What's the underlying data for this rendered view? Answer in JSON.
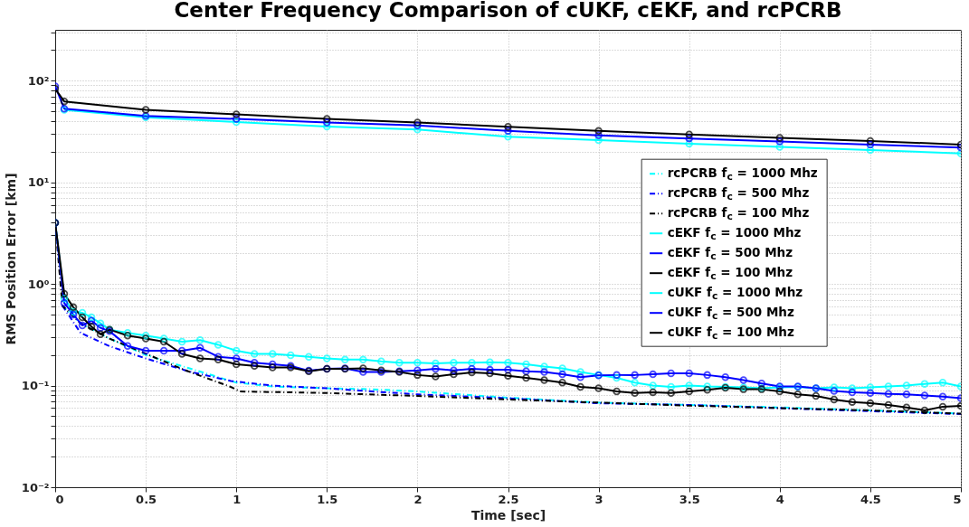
{
  "chart_data": {
    "type": "line",
    "title": "Center Frequency Comparison of cUKF, cEKF, and rcPCRB",
    "xlabel": "Time [sec]",
    "ylabel": "RMS Position Error [km]",
    "log": "y",
    "grid": true,
    "legend": "right",
    "xlim": [
      0,
      5
    ],
    "xticks": [
      0,
      0.5,
      1,
      1.5,
      2,
      2.5,
      3,
      3.5,
      4,
      4.5,
      5
    ],
    "ylim": [
      0.01,
      316
    ],
    "yticks": [
      {
        "value": 0.01,
        "label": "10⁻²"
      },
      {
        "value": 0.02,
        "label": null
      },
      {
        "value": 0.03,
        "label": null
      },
      {
        "value": 0.04,
        "label": null
      },
      {
        "value": 0.05,
        "label": null
      },
      {
        "value": 0.06,
        "label": null
      },
      {
        "value": 0.07,
        "label": null
      },
      {
        "value": 0.08,
        "label": null
      },
      {
        "value": 0.09,
        "label": null
      },
      {
        "value": 0.1,
        "label": "10⁻¹"
      },
      {
        "value": 0.2,
        "label": null
      },
      {
        "value": 0.3,
        "label": null
      },
      {
        "value": 0.4,
        "label": null
      },
      {
        "value": 0.5,
        "label": null
      },
      {
        "value": 0.6,
        "label": null
      },
      {
        "value": 0.7,
        "label": null
      },
      {
        "value": 0.8,
        "label": null
      },
      {
        "value": 0.9,
        "label": null
      },
      {
        "value": 1,
        "label": "10⁰"
      },
      {
        "value": 2,
        "label": null
      },
      {
        "value": 3,
        "label": null
      },
      {
        "value": 4,
        "label": null
      },
      {
        "value": 5,
        "label": null
      },
      {
        "value": 6,
        "label": null
      },
      {
        "value": 7,
        "label": null
      },
      {
        "value": 8,
        "label": null
      },
      {
        "value": 9,
        "label": null
      },
      {
        "value": 10,
        "label": "10¹"
      },
      {
        "value": 20,
        "label": null
      },
      {
        "value": 30,
        "label": null
      },
      {
        "value": 40,
        "label": null
      },
      {
        "value": 50,
        "label": null
      },
      {
        "value": 60,
        "label": null
      },
      {
        "value": 70,
        "label": null
      },
      {
        "value": 80,
        "label": null
      },
      {
        "value": 90,
        "label": null
      },
      {
        "value": 100,
        "label": "10²"
      },
      {
        "value": 200,
        "label": null
      },
      {
        "value": 300,
        "label": null
      }
    ],
    "series": [
      {
        "name": "rcPCRB f$_{c}$ = 1000 Mhz",
        "color": "#00ffff",
        "line_style": "dashed",
        "marker": "none",
        "x": [
          0.04,
          0.14,
          0.3,
          0.5,
          0.75,
          1,
          1.2,
          1.5,
          1.75,
          2,
          2.5,
          3,
          3.5,
          4,
          4.5,
          5
        ],
        "values": [
          0.61,
          0.41,
          0.29,
          0.2,
          0.146,
          0.107,
          0.098,
          0.094,
          0.092,
          0.0875,
          0.076,
          0.068,
          0.0645,
          0.061,
          0.057,
          0.053
        ]
      },
      {
        "name": "rcPCRB f$_{c}$ = 500 Mhz",
        "color": "#0000ff",
        "line_style": "dashed",
        "marker": "none",
        "x": [
          0.04,
          0.14,
          0.3,
          0.5,
          0.75,
          0.97,
          1.2,
          1.5,
          1.75,
          2,
          2.5,
          3,
          3.5,
          4,
          4.5,
          5
        ],
        "values": [
          0.61,
          0.33,
          0.244,
          0.185,
          0.136,
          0.111,
          0.1,
          0.094,
          0.0875,
          0.082,
          0.075,
          0.067,
          0.0645,
          0.06,
          0.056,
          0.0525
        ]
      },
      {
        "name": "rcPCRB f$_{c}$ = 100 Mhz",
        "color": "#000000",
        "line_style": "dashed",
        "marker": "none",
        "x": [
          0,
          0.04,
          0.14,
          0.3,
          0.5,
          0.72,
          0.97,
          1.02,
          1.5,
          2,
          2.5,
          3,
          3.5,
          4,
          4.5,
          5
        ],
        "values": [
          4,
          0.61,
          0.41,
          0.29,
          0.206,
          0.141,
          0.097,
          0.0875,
          0.0845,
          0.079,
          0.073,
          0.068,
          0.0635,
          0.06,
          0.057,
          0.053
        ]
      },
      {
        "name": "cEKF f$_{c}$ = 1000 Mhz",
        "color": "#00ffff",
        "line_style": "solid",
        "marker": "circle",
        "x": [
          0.05,
          0.5,
          1,
          1.5,
          2,
          2.5,
          3,
          3.5,
          4,
          4.5,
          5
        ],
        "values": [
          51.6,
          43.5,
          39.2,
          35.4,
          33.1,
          28,
          26,
          24,
          22.3,
          20.8,
          19.2
        ]
      },
      {
        "name": "cEKF f$_{c}$ = 500 Mhz",
        "color": "#0000ff",
        "line_style": "solid",
        "marker": "circle",
        "x": [
          0,
          0.05,
          0.5,
          1,
          1.5,
          2,
          2.5,
          3,
          3.5,
          4,
          4.5,
          5
        ],
        "values": [
          88,
          53,
          45,
          42,
          38.8,
          36.2,
          32,
          28.9,
          27,
          25.2,
          23.5,
          22
        ]
      },
      {
        "name": "cEKF f$_{c}$ = 100 Mhz",
        "color": "#000000",
        "line_style": "solid",
        "marker": "circle",
        "x": [
          0,
          0.05,
          0.5,
          1,
          1.5,
          2,
          2.5,
          3,
          3.5,
          4,
          4.5,
          5
        ],
        "values": [
          83,
          62.5,
          51.6,
          46.6,
          42,
          38.8,
          35.2,
          32,
          29.5,
          27.4,
          25.5,
          23.5
        ]
      },
      {
        "name": "cUKF f$_{c}$ = 1000 Mhz",
        "color": "#00ffff",
        "line_style": "solid",
        "marker": "circle",
        "x": [
          0,
          0.05,
          0.1,
          0.15,
          0.2,
          0.25,
          0.3,
          0.4,
          0.5,
          0.6,
          0.7,
          0.8,
          0.9,
          1.0,
          1.1,
          1.2,
          1.3,
          1.4,
          1.5,
          1.6,
          1.7,
          1.8,
          1.9,
          2.0,
          2.1,
          2.2,
          2.3,
          2.4,
          2.5,
          2.6,
          2.7,
          2.8,
          2.9,
          3.0,
          3.1,
          3.2,
          3.3,
          3.4,
          3.5,
          3.6,
          3.7,
          3.8,
          3.9,
          4.0,
          4.1,
          4.2,
          4.3,
          4.4,
          4.5,
          4.6,
          4.7,
          4.8,
          4.9,
          5.0
        ],
        "values": [
          4,
          0.72,
          0.53,
          0.52,
          0.47,
          0.41,
          0.355,
          0.33,
          0.31,
          0.29,
          0.27,
          0.28,
          0.252,
          0.22,
          0.205,
          0.205,
          0.199,
          0.192,
          0.185,
          0.18,
          0.18,
          0.173,
          0.168,
          0.168,
          0.165,
          0.168,
          0.168,
          0.17,
          0.168,
          0.162,
          0.154,
          0.148,
          0.136,
          0.127,
          0.119,
          0.107,
          0.1,
          0.097,
          0.1,
          0.098,
          0.097,
          0.096,
          0.094,
          0.096,
          0.097,
          0.094,
          0.096,
          0.094,
          0.096,
          0.098,
          0.1,
          0.104,
          0.107,
          0.098
        ]
      },
      {
        "name": "cUKF f$_{c}$ = 500 Mhz",
        "color": "#0000ff",
        "line_style": "solid",
        "marker": "circle",
        "x": [
          0,
          0.05,
          0.1,
          0.15,
          0.2,
          0.25,
          0.3,
          0.4,
          0.5,
          0.6,
          0.7,
          0.8,
          0.9,
          1.0,
          1.1,
          1.2,
          1.3,
          1.4,
          1.5,
          1.6,
          1.7,
          1.8,
          1.9,
          2.0,
          2.1,
          2.2,
          2.3,
          2.4,
          2.5,
          2.6,
          2.7,
          2.8,
          2.9,
          3.0,
          3.1,
          3.2,
          3.3,
          3.4,
          3.5,
          3.6,
          3.7,
          3.8,
          3.9,
          4.0,
          4.1,
          4.2,
          4.3,
          4.4,
          4.5,
          4.6,
          4.7,
          4.8,
          4.9,
          5.0
        ],
        "values": [
          4,
          0.65,
          0.5,
          0.39,
          0.435,
          0.37,
          0.343,
          0.245,
          0.22,
          0.22,
          0.22,
          0.235,
          0.192,
          0.185,
          0.168,
          0.162,
          0.156,
          0.14,
          0.146,
          0.148,
          0.136,
          0.136,
          0.138,
          0.141,
          0.146,
          0.141,
          0.146,
          0.143,
          0.143,
          0.138,
          0.136,
          0.129,
          0.121,
          0.126,
          0.127,
          0.127,
          0.129,
          0.132,
          0.132,
          0.127,
          0.121,
          0.113,
          0.105,
          0.098,
          0.098,
          0.094,
          0.0887,
          0.0857,
          0.0845,
          0.083,
          0.082,
          0.08,
          0.078,
          0.075
        ]
      },
      {
        "name": "cUKF f$_{c}$ = 100 Mhz",
        "color": "#000000",
        "line_style": "solid",
        "marker": "circle",
        "x": [
          0,
          0.05,
          0.1,
          0.15,
          0.2,
          0.25,
          0.3,
          0.4,
          0.5,
          0.6,
          0.7,
          0.8,
          0.9,
          1.0,
          1.1,
          1.2,
          1.3,
          1.4,
          1.5,
          1.6,
          1.7,
          1.8,
          1.9,
          2.0,
          2.1,
          2.2,
          2.3,
          2.4,
          2.5,
          2.6,
          2.7,
          2.8,
          2.9,
          3.0,
          3.1,
          3.2,
          3.3,
          3.4,
          3.5,
          3.6,
          3.7,
          3.8,
          3.9,
          4.0,
          4.1,
          4.2,
          4.3,
          4.4,
          4.5,
          4.6,
          4.7,
          4.8,
          4.9,
          5.0
        ],
        "values": [
          4,
          0.8,
          0.59,
          0.47,
          0.38,
          0.32,
          0.355,
          0.31,
          0.29,
          0.27,
          0.205,
          0.185,
          0.18,
          0.162,
          0.156,
          0.151,
          0.151,
          0.138,
          0.146,
          0.146,
          0.148,
          0.141,
          0.136,
          0.127,
          0.123,
          0.129,
          0.135,
          0.132,
          0.125,
          0.119,
          0.113,
          0.107,
          0.097,
          0.094,
          0.0875,
          0.0845,
          0.086,
          0.0845,
          0.0875,
          0.091,
          0.095,
          0.092,
          0.092,
          0.0875,
          0.082,
          0.079,
          0.073,
          0.069,
          0.067,
          0.0644,
          0.061,
          0.057,
          0.062,
          0.063
        ]
      }
    ]
  }
}
